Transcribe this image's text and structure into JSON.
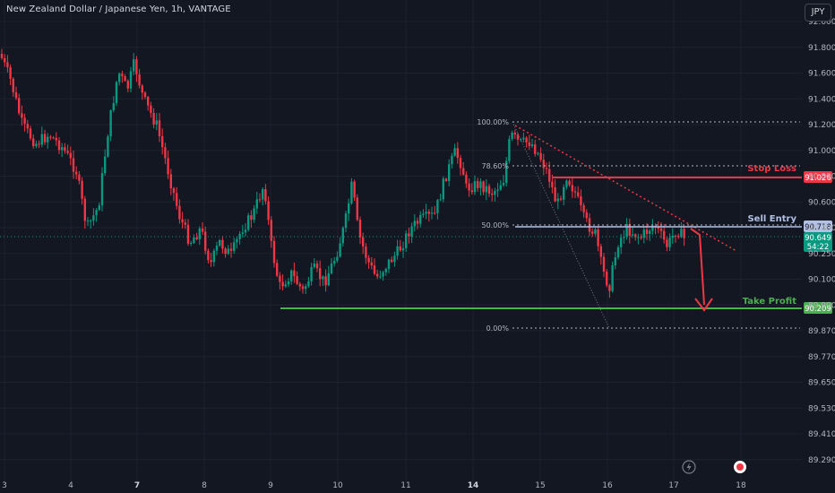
{
  "header": {
    "title": "New Zealand Dollar / Japanese Yen, 1h, VANTAGE",
    "currency_button": "JPY"
  },
  "chart_data": {
    "type": "candlestick",
    "title": "New Zealand Dollar / Japanese Yen, 1h, VANTAGE",
    "ylim": [
      89.16,
      92.04
    ],
    "x_ticks": [
      "3",
      "4",
      "7",
      "8",
      "9",
      "10",
      "11",
      "14",
      "15",
      "16",
      "17",
      "18"
    ],
    "x_ticks_bold": [
      "7",
      "14"
    ],
    "y_ticks": [
      "92.000",
      "91.800",
      "91.600",
      "91.400",
      "91.200",
      "91.000",
      "90.800",
      "90.600",
      "90.400",
      "90.250",
      "90.100",
      "89.990",
      "89.870",
      "89.770",
      "89.650",
      "89.530",
      "89.410",
      "89.290"
    ],
    "fib_levels": [
      {
        "label": "100.00%",
        "price": 91.38
      },
      {
        "label": "78.60%",
        "price": 91.085
      },
      {
        "label": "50.00%",
        "price": 90.72
      },
      {
        "label": "0.00%",
        "price": 90.085
      }
    ],
    "levels": [
      {
        "name": "Stop Loss",
        "price": 91.026,
        "color": "#f23645",
        "badge": "91.026"
      },
      {
        "name": "Sell Entry",
        "price": 90.718,
        "color": "#b2c0e6",
        "badge": "90.718"
      },
      {
        "name": "Take Profit",
        "price": 90.209,
        "color": "#4caf50",
        "badge": "90.209"
      }
    ],
    "last_price": {
      "value": "90.649",
      "countdown": "54:22",
      "color": "#089981"
    },
    "colors": {
      "up": "#089981",
      "down": "#f23645",
      "grid": "#1e222d",
      "text": "#b2b5be"
    }
  },
  "toolbar": {
    "icons": [
      "lightning-icon",
      "record-icon"
    ]
  }
}
